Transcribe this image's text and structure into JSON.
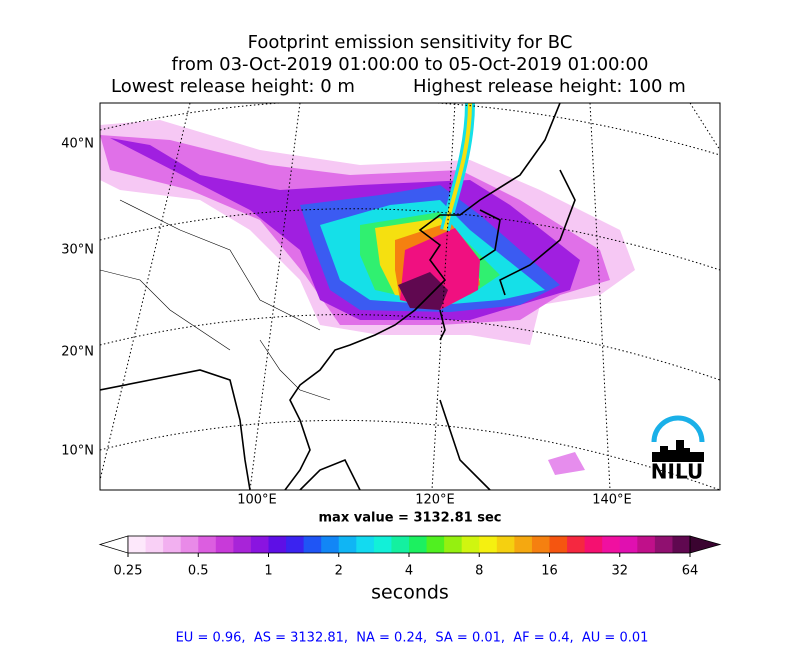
{
  "header": {
    "title_lines": [
      "Footprint emission sensitivity for BC",
      "from 03-Oct-2019 01:00:00 to 05-Oct-2019 01:00:00"
    ],
    "lowest_release": "Lowest release height: 0 m",
    "highest_release": "Highest release height: 100 m"
  },
  "map": {
    "lat_labels": [
      "40°N",
      "30°N",
      "20°N",
      "10°N"
    ],
    "lon_labels": [
      "100°E",
      "120°E",
      "140°E"
    ],
    "max_value_text": "max value = 3132.81 sec"
  },
  "logo": {
    "text": "NILU"
  },
  "colorbar": {
    "scale": "log",
    "lim": [
      0.25,
      64
    ],
    "ticks": [
      0.25,
      0.5,
      1,
      2,
      4,
      8,
      16,
      32,
      64
    ],
    "label": "seconds",
    "colors": [
      "#fde8fb",
      "#f9d0f6",
      "#f2b0f0",
      "#e98ae8",
      "#dc5ee0",
      "#c83ad9",
      "#a824d8",
      "#8a14e0",
      "#5e0fe6",
      "#3b23f0",
      "#1f55f5",
      "#1286f6",
      "#10b5f4",
      "#13daf0",
      "#12f0d8",
      "#14f0a0",
      "#1cf060",
      "#50f020",
      "#95f010",
      "#d0f510",
      "#f5f010",
      "#f5d010",
      "#f5a810",
      "#f58010",
      "#f55510",
      "#f52840",
      "#f51070",
      "#f010a0",
      "#e010b0",
      "#c0108a",
      "#901070",
      "#600850"
    ],
    "footer": "EU = 0.96,  AS = 3132.81,  NA = 0.24,  SA = 0.01,  AF = 0.4,  AU = 0.01"
  }
}
